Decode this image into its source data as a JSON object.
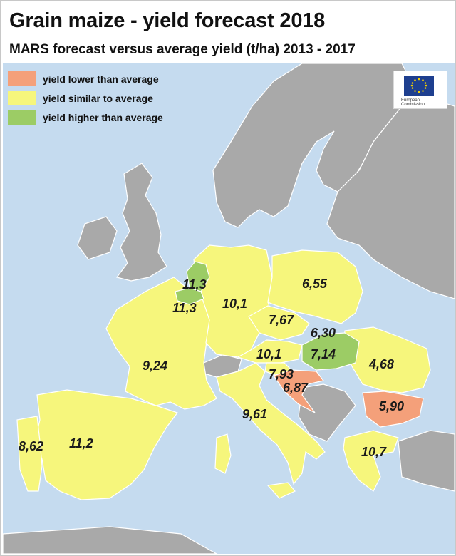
{
  "title": "Grain maize - yield forecast 2018",
  "subtitle": "MARS forecast versus average yield (t/ha) 2013 - 2017",
  "legend": [
    {
      "label": "yield lower than average",
      "color": "#f4a07a"
    },
    {
      "label": "yield similar to average",
      "color": "#f6f67c"
    },
    {
      "label": "yield higher than average",
      "color": "#9ccc65"
    }
  ],
  "colors": {
    "sea": "#c5dbef",
    "non_eu_land": "#a9a9a9",
    "border": "#ffffff"
  },
  "logo": {
    "text_line1": "European",
    "text_line2": "Commission"
  },
  "values": {
    "netherlands": "11,3",
    "belgium": "11,3",
    "germany": "10,1",
    "poland": "6,55",
    "czechia": "7,67",
    "slovakia": "6,30",
    "hungary": "7,14",
    "austria": "10,1",
    "slovenia": "7,93",
    "croatia": "6,87",
    "romania": "4,68",
    "bulgaria": "5,90",
    "france": "9,24",
    "italy": "9,61",
    "spain": "11,2",
    "portugal": "8,62",
    "greece": "10,7"
  }
}
